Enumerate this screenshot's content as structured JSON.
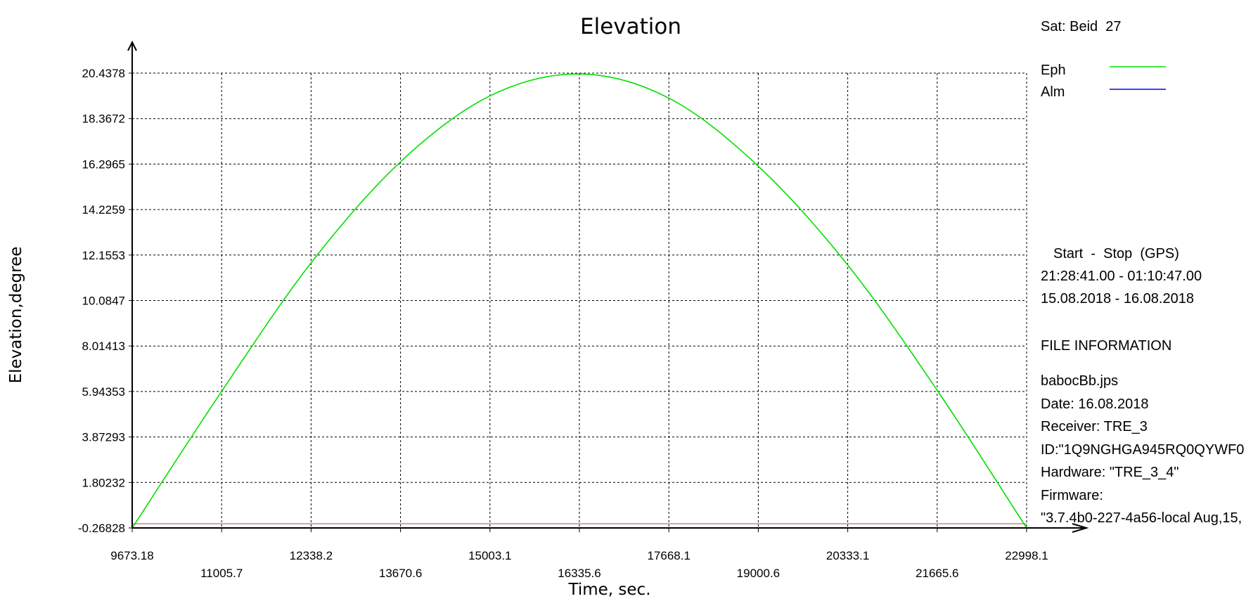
{
  "chart_data": {
    "type": "line",
    "title": "Elevation",
    "xlabel": "Time, sec.",
    "ylabel": "Elevation,degree",
    "xlim": [
      9673.18,
      22998.1
    ],
    "ylim": [
      -0.26828,
      20.4378
    ],
    "x_ticks": [
      "9673.18",
      "11005.7",
      "12338.2",
      "13670.6",
      "15003.1",
      "16335.6",
      "17668.1",
      "19000.6",
      "20333.1",
      "21665.6",
      "22998.1"
    ],
    "y_ticks": [
      "-0.26828",
      "1.80232",
      "3.87293",
      "5.94353",
      "8.01413",
      "10.0847",
      "12.1553",
      "14.2259",
      "16.2965",
      "18.3672",
      "20.4378"
    ],
    "grid": true,
    "series": [
      {
        "name": "Eph",
        "color": "#00e000",
        "x": [
          9673.18,
          11005.7,
          12338.2,
          13670.6,
          15003.1,
          16335.6,
          17668.1,
          19000.6,
          20333.1,
          21665.6,
          22998.1
        ],
        "y": [
          -0.27,
          5.95,
          11.8,
          16.4,
          19.4,
          20.4,
          19.3,
          16.2,
          11.7,
          6.0,
          -0.27
        ]
      },
      {
        "name": "Alm",
        "color": "#0000ff",
        "x": [],
        "y": []
      }
    ],
    "reference_line": {
      "y": -0.26828,
      "color": "#c04040"
    }
  },
  "side_panel": {
    "sat_label": "Sat: Beid  27",
    "legend": [
      {
        "label": "Eph",
        "color": "#00e000"
      },
      {
        "label": "Alm",
        "color": "#0000ff"
      }
    ],
    "start_stop_header": "Start  -  Stop  (GPS)",
    "time_range": "21:28:41.00 - 01:10:47.00",
    "date_range": "15.08.2018 - 16.08.2018",
    "file_info_header": "FILE INFORMATION",
    "file_name": "babocBb.jps",
    "date": "Date: 16.08.2018",
    "receiver": "Receiver: TRE_3",
    "id": "ID:\"1Q9NGHGA945RQ0QYWF0",
    "hardware": "Hardware: \"TRE_3_4\"",
    "firmware_label": "Firmware:",
    "firmware_value": "\"3.7.4b0-227-4a56-local Aug,15,"
  }
}
